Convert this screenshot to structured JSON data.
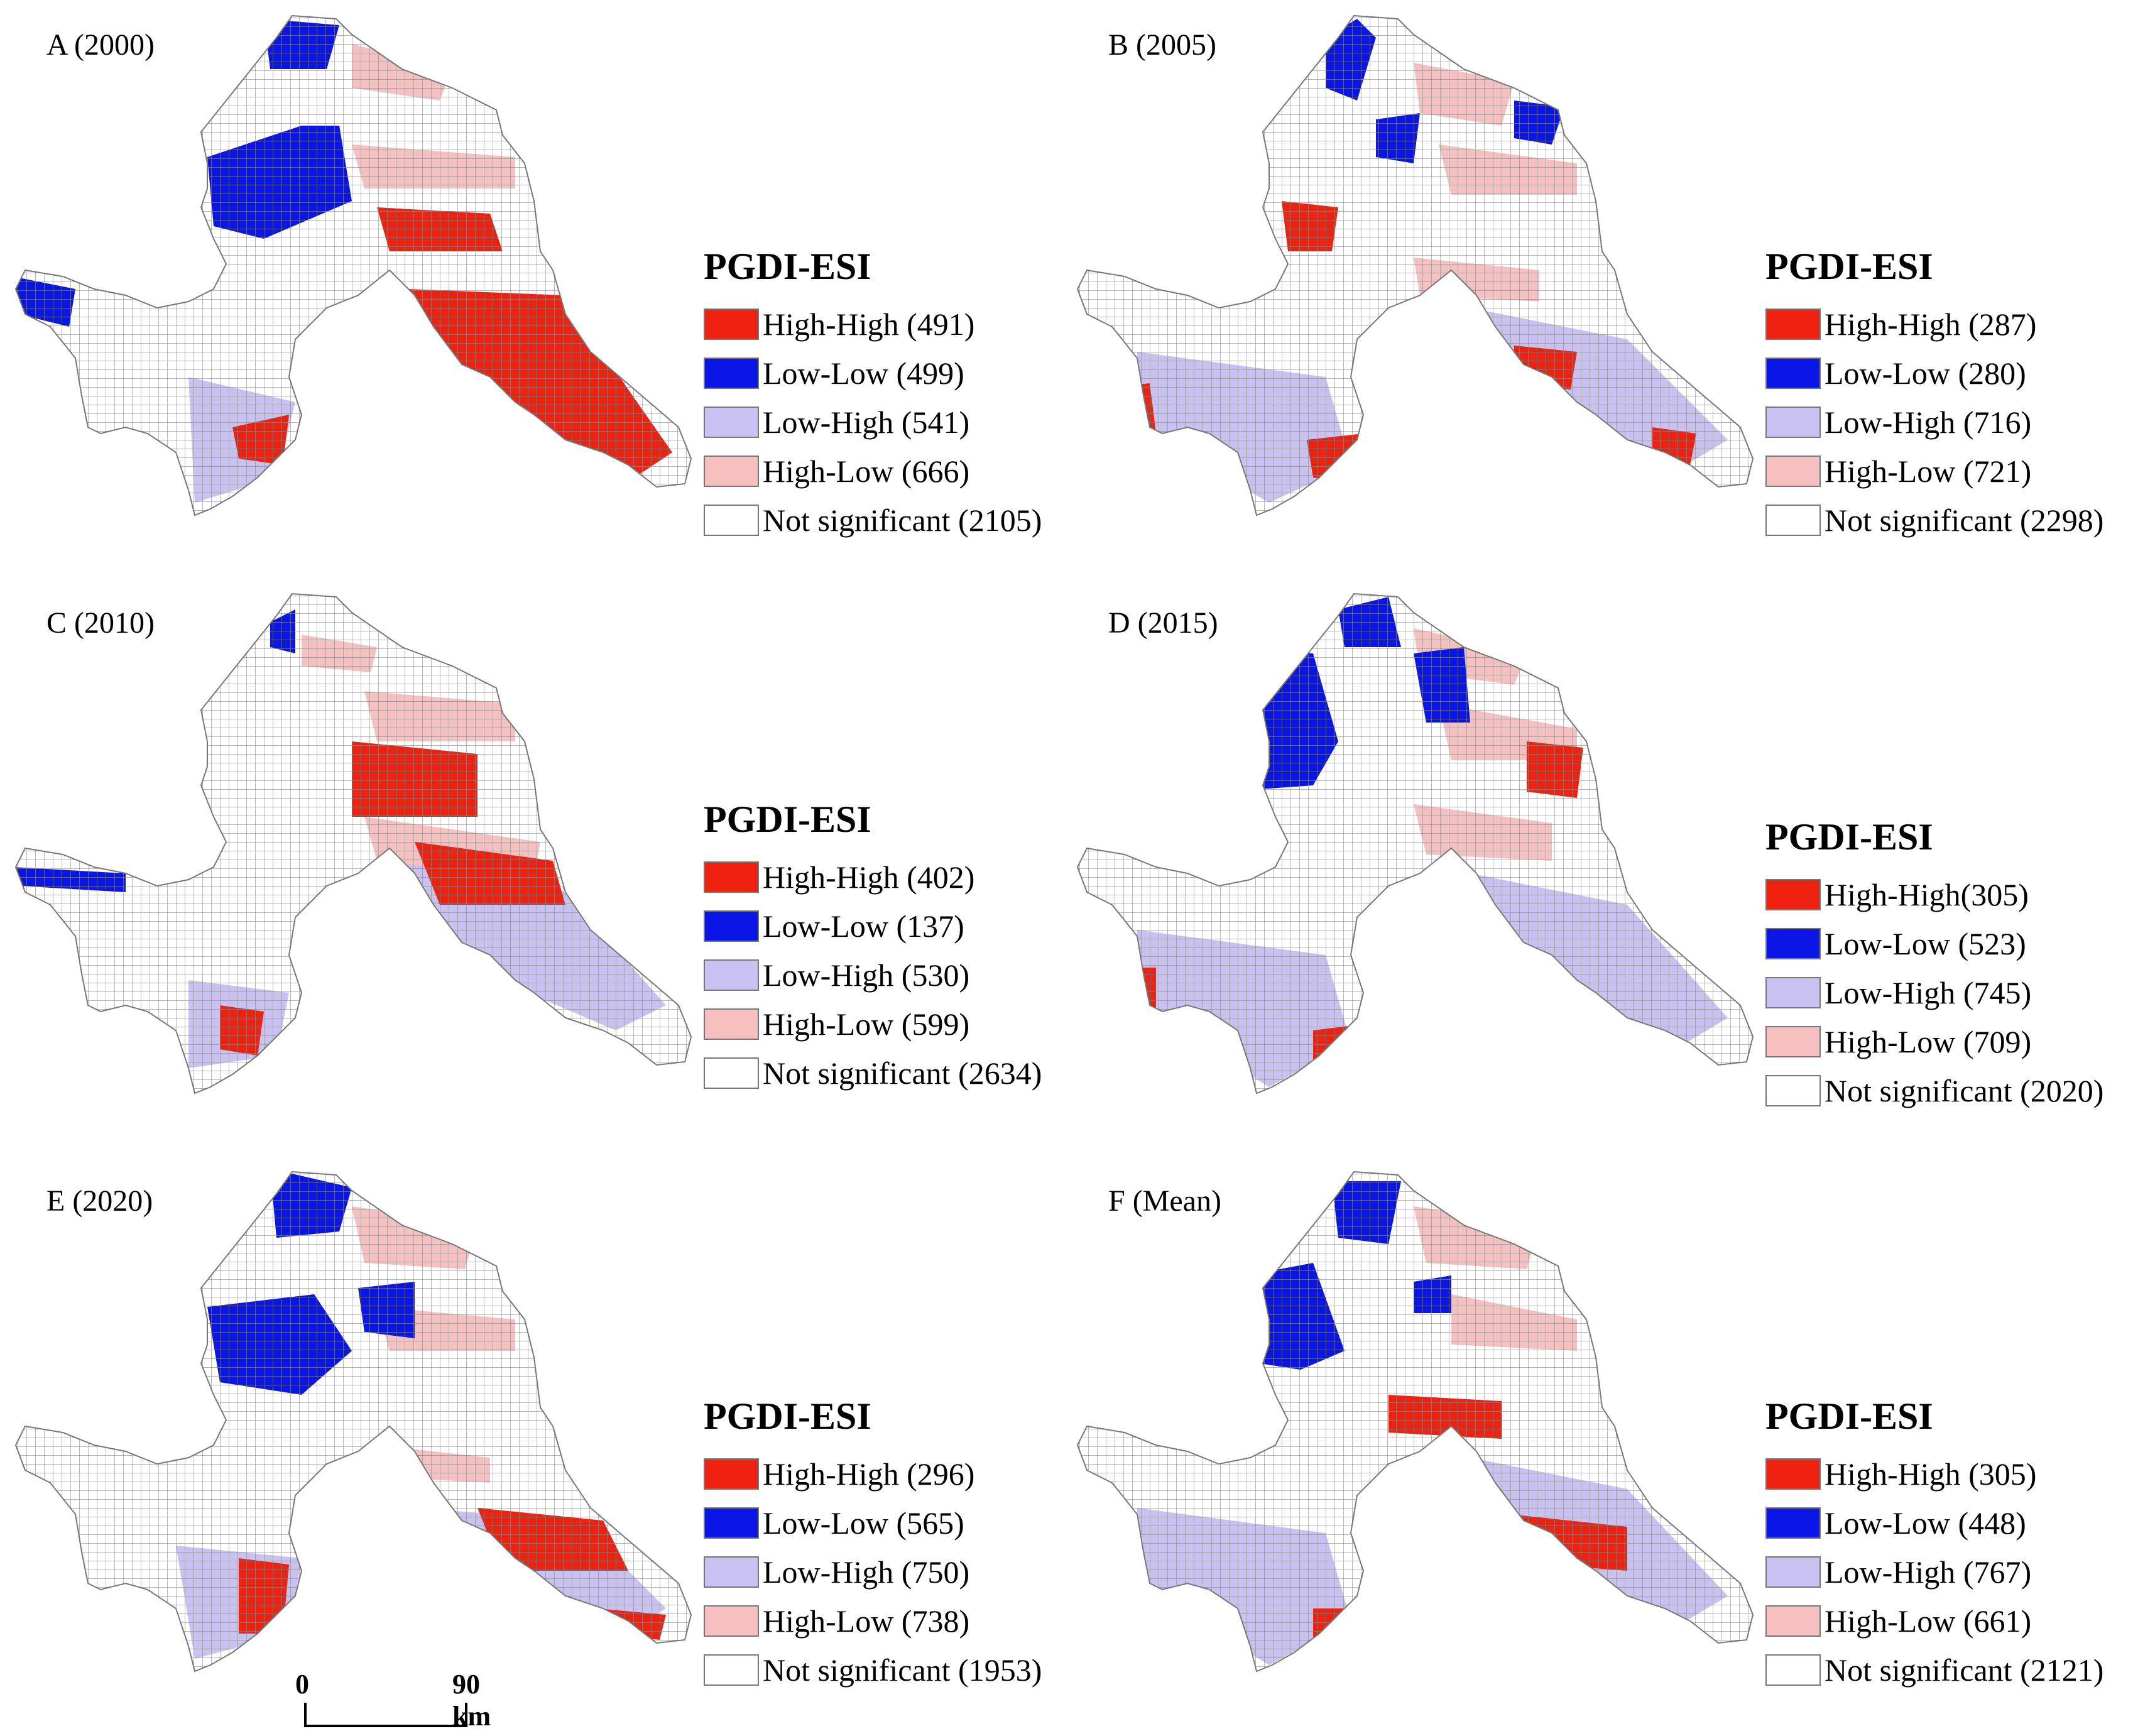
{
  "legend_title": "PGDI-ESI",
  "class_colors": {
    "hh": "#ee2211",
    "ll": "#0a16e6",
    "lh": "#c9c1f1",
    "hl": "#f6c0c0",
    "ns": "#ffffff"
  },
  "panels": [
    {
      "title": "A (2000)",
      "legend": [
        {
          "class": "hh",
          "label": "High-High (491)"
        },
        {
          "class": "ll",
          "label": "Low-Low (499)"
        },
        {
          "class": "lh",
          "label": "Low-High (541)"
        },
        {
          "class": "hl",
          "label": "High-Low (666)"
        },
        {
          "class": "ns",
          "label": "Not significant (2105)"
        }
      ]
    },
    {
      "title": "B (2005)",
      "legend": [
        {
          "class": "hh",
          "label": "High-High (287)"
        },
        {
          "class": "ll",
          "label": "Low-Low (280)"
        },
        {
          "class": "lh",
          "label": "Low-High (716)"
        },
        {
          "class": "hl",
          "label": "High-Low (721)"
        },
        {
          "class": "ns",
          "label": "Not significant (2298)"
        }
      ]
    },
    {
      "title": "C (2010)",
      "legend": [
        {
          "class": "hh",
          "label": "High-High (402)"
        },
        {
          "class": "ll",
          "label": "Low-Low (137)"
        },
        {
          "class": "lh",
          "label": "Low-High (530)"
        },
        {
          "class": "hl",
          "label": "High-Low (599)"
        },
        {
          "class": "ns",
          "label": "Not significant (2634)"
        }
      ]
    },
    {
      "title": "D (2015)",
      "legend": [
        {
          "class": "hh",
          "label": "High-High(305)"
        },
        {
          "class": "ll",
          "label": "Low-Low (523)"
        },
        {
          "class": "lh",
          "label": "Low-High (745)"
        },
        {
          "class": "hl",
          "label": "High-Low (709)"
        },
        {
          "class": "ns",
          "label": "Not significant (2020)"
        }
      ]
    },
    {
      "title": "E (2020)",
      "legend": [
        {
          "class": "hh",
          "label": "High-High (296)"
        },
        {
          "class": "ll",
          "label": "Low-Low (565)"
        },
        {
          "class": "lh",
          "label": "Low-High (750)"
        },
        {
          "class": "hl",
          "label": "High-Low (738)"
        },
        {
          "class": "ns",
          "label": "Not significant (1953)"
        }
      ]
    },
    {
      "title": "F (Mean)",
      "legend": [
        {
          "class": "hh",
          "label": "High-High (305)"
        },
        {
          "class": "ll",
          "label": "Low-Low (448)"
        },
        {
          "class": "lh",
          "label": "Low-High (767)"
        },
        {
          "class": "hl",
          "label": "High-Low (661)"
        },
        {
          "class": "ns",
          "label": "Not significant (2121)"
        }
      ]
    }
  ],
  "scale_bar": {
    "start": "0",
    "end": "90 km"
  }
}
